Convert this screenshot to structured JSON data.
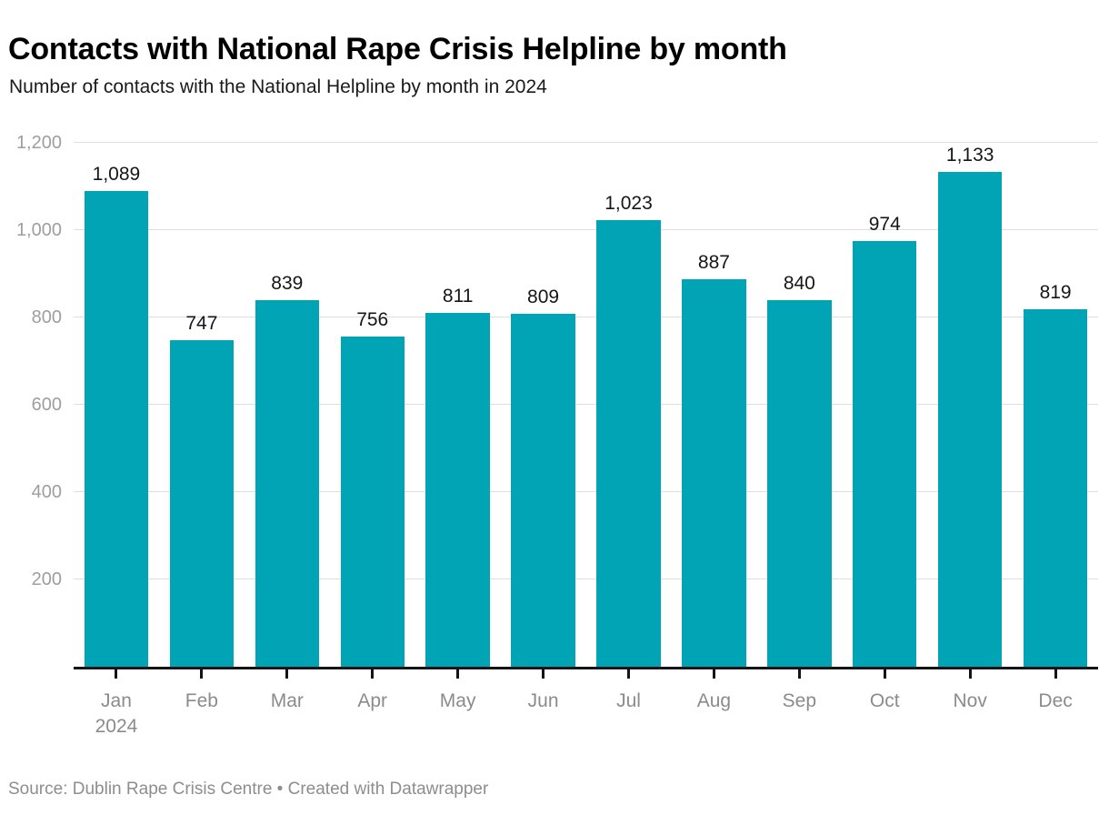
{
  "chart_data": {
    "type": "bar",
    "title": "Contacts with National Rape Crisis Helpline by month",
    "subtitle": "Number of contacts with the National Helpline by month in 2024",
    "categories": [
      "Jan",
      "Feb",
      "Mar",
      "Apr",
      "May",
      "Jun",
      "Jul",
      "Aug",
      "Sep",
      "Oct",
      "Nov",
      "Dec"
    ],
    "x_axis_year": {
      "index": 0,
      "label": "2024"
    },
    "values": [
      1089,
      747,
      839,
      756,
      811,
      809,
      1023,
      887,
      840,
      974,
      1133,
      819
    ],
    "value_labels": [
      "1,089",
      "747",
      "839",
      "756",
      "811",
      "809",
      "1,023",
      "887",
      "840",
      "974",
      "1,133",
      "819"
    ],
    "xlabel": "",
    "ylabel": "",
    "ylim": [
      0,
      1200
    ],
    "yticks": [
      200,
      400,
      600,
      800,
      1000,
      1200
    ],
    "ytick_labels": [
      "200",
      "400",
      "600",
      "800",
      "1,000",
      "1,200"
    ],
    "grid": true,
    "legend_position": "none",
    "colors": {
      "bar": "#00a4b4",
      "gridline": "#dedede",
      "axis_line": "#141414",
      "value_label": "#161616",
      "tick_label": "#9e9e9e",
      "month_label": "#8b8b8b"
    }
  },
  "footer": {
    "source_text": "Source: Dublin Rape Crisis Centre • Created with Datawrapper"
  }
}
